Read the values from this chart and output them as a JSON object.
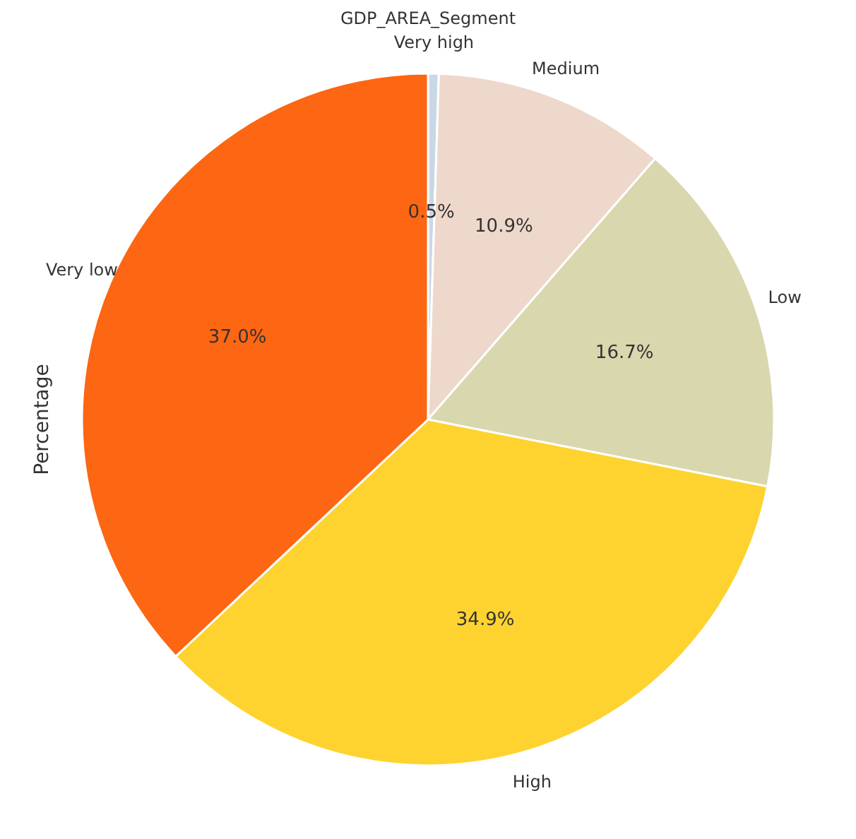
{
  "chart_data": {
    "type": "pie",
    "title": "GDP_AREA_Segment",
    "ylabel": "Percentage",
    "categories": [
      "Very high",
      "Medium",
      "Low",
      "High",
      "Very low"
    ],
    "values": [
      0.5,
      10.9,
      16.7,
      34.9,
      37.0
    ],
    "value_labels": [
      "0.5%",
      "10.9%",
      "16.7%",
      "34.9%",
      "37.0%"
    ],
    "colors": [
      "#c9d8e6",
      "#eed8cb",
      "#d9d7ae",
      "#fed330",
      "#fd6612"
    ]
  }
}
